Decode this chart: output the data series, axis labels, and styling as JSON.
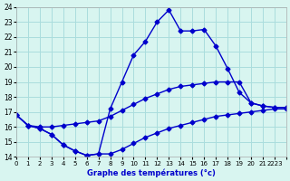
{
  "xlabel": "Graphe des températures (°c)",
  "bg_color": "#d8f5f0",
  "grid_color": "#aadddd",
  "line_color": "#0000cc",
  "ylim": [
    14,
    24
  ],
  "xlim": [
    0,
    23
  ],
  "y_ticks": [
    14,
    15,
    16,
    17,
    18,
    19,
    20,
    21,
    22,
    23,
    24
  ],
  "x_ticks": [
    0,
    1,
    2,
    3,
    4,
    5,
    6,
    7,
    8,
    9,
    10,
    11,
    12,
    13,
    14,
    15,
    16,
    17,
    18,
    19,
    20,
    21,
    22,
    23
  ],
  "x_tick_labels": [
    "0",
    "1",
    "2",
    "3",
    "4",
    "5",
    "6",
    "7",
    "8",
    "9",
    "10",
    "11",
    "12",
    "13",
    "14",
    "15",
    "16",
    "17",
    "18",
    "19",
    "20",
    "21",
    "2223",
    ""
  ],
  "curve_hours": [
    0,
    1,
    2,
    3,
    4,
    5,
    6,
    7,
    8,
    9,
    10,
    11,
    12,
    13,
    14,
    15,
    16,
    17,
    18,
    19,
    20,
    21,
    22,
    23
  ],
  "curve_temps": [
    16.8,
    16.1,
    15.9,
    15.5,
    14.8,
    14.4,
    14.1,
    14.2,
    17.2,
    19.0,
    20.8,
    21.7,
    23.0,
    23.8,
    22.4,
    22.4,
    22.5,
    21.4,
    19.9,
    18.3,
    17.6,
    17.4,
    17.3,
    17.3
  ],
  "max_hours": [
    0,
    1,
    2,
    3,
    4,
    5,
    6,
    7,
    8,
    9,
    10,
    11,
    12,
    13,
    14,
    15,
    16,
    17,
    18,
    19,
    20,
    21,
    22,
    23
  ],
  "max_temps": [
    16.8,
    16.1,
    16.0,
    16.0,
    16.1,
    16.2,
    16.3,
    16.4,
    16.7,
    17.1,
    17.5,
    17.9,
    18.2,
    18.5,
    18.7,
    18.8,
    18.9,
    19.0,
    19.0,
    19.0,
    17.6,
    17.4,
    17.3,
    17.3
  ],
  "min_hours": [
    0,
    1,
    2,
    3,
    4,
    5,
    6,
    7,
    8,
    9,
    10,
    11,
    12,
    13,
    14,
    15,
    16,
    17,
    18,
    19,
    20,
    21,
    22,
    23
  ],
  "min_temps": [
    16.8,
    16.1,
    15.9,
    15.5,
    14.8,
    14.4,
    14.1,
    14.2,
    14.2,
    14.5,
    14.9,
    15.3,
    15.6,
    15.9,
    16.1,
    16.3,
    16.5,
    16.7,
    16.8,
    16.9,
    17.0,
    17.1,
    17.2,
    17.2
  ]
}
